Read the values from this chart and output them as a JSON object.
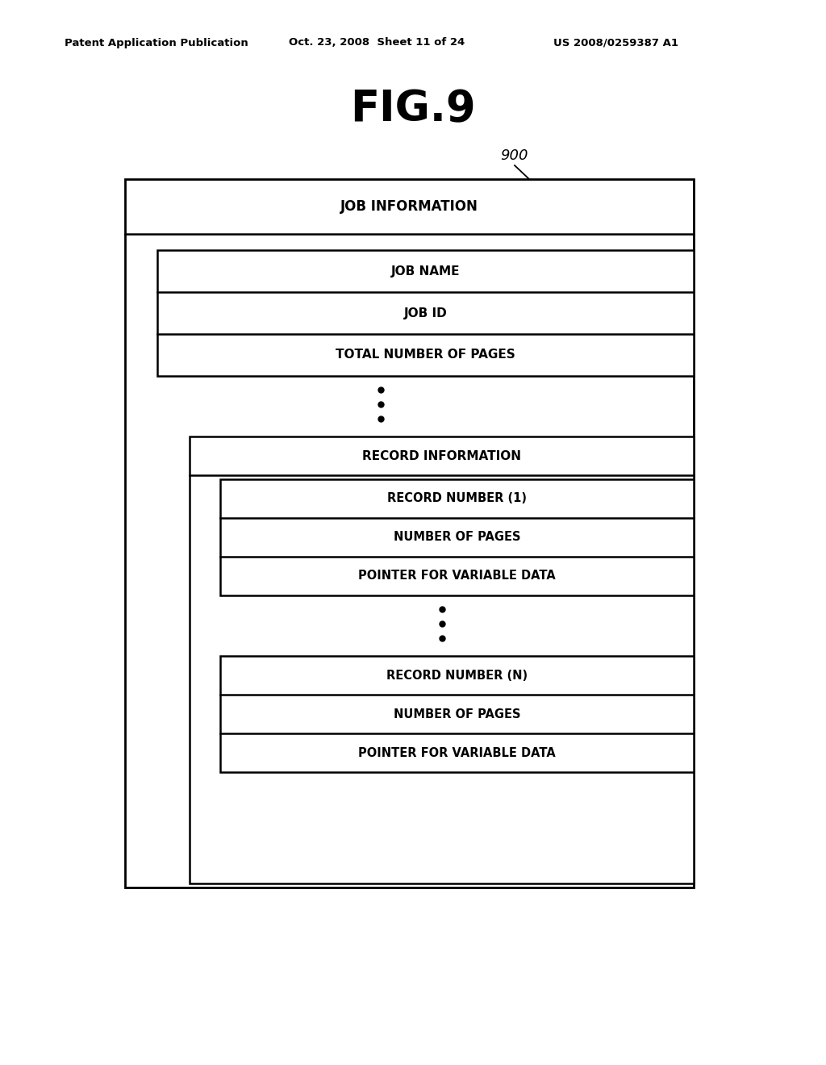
{
  "title": "FIG.9",
  "label_900": "900",
  "header_text": "Patent Application Publication",
  "header_date": "Oct. 23, 2008  Sheet 11 of 24",
  "header_patent": "US 2008/0259387 A1",
  "bg_color": "#ffffff",
  "box_color": "#000000",
  "text_color": "#000000",
  "job_info_label": "JOB INFORMATION",
  "job_name_label": "JOB NAME",
  "job_id_label": "JOB ID",
  "total_pages_label": "TOTAL NUMBER OF PAGES",
  "record_info_label": "RECORD INFORMATION",
  "record_num1_label": "RECORD NUMBER (1)",
  "num_pages1_label": "NUMBER OF PAGES",
  "pointer1_label": "POINTER FOR VARIABLE DATA",
  "record_num_n_label": "RECORD NUMBER (N)",
  "num_pages_n_label": "NUMBER OF PAGES",
  "pointer_n_label": "POINTER FOR VARIABLE DATA"
}
